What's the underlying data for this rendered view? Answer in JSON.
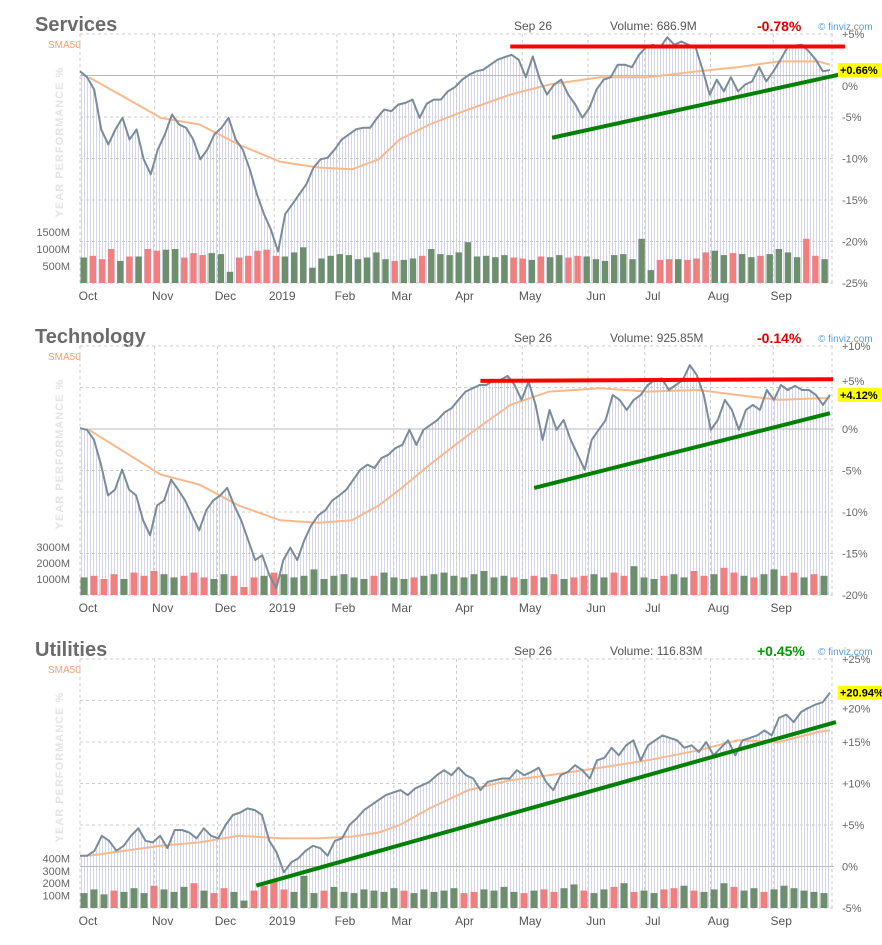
{
  "x_axis": {
    "labels": [
      "Oct",
      "Nov",
      "Dec",
      "2019",
      "Feb",
      "Mar",
      "Apr",
      "May",
      "Jun",
      "Jul",
      "Aug",
      "Sep"
    ],
    "days": [
      0,
      25,
      46,
      65,
      86,
      105,
      126,
      148,
      170,
      189,
      211,
      232
    ],
    "total_days": 251
  },
  "colors": {
    "price": "#7a8c9a",
    "sma": "#f8b98f",
    "up_volume": "#6e8f6e",
    "down_volume": "#f08080",
    "red_line": "#ff0000",
    "green_line": "#008000",
    "highlight": "#ffff00",
    "negative": "#dd0000",
    "positive": "#009900"
  },
  "chart_data": [
    {
      "type": "line",
      "title": "Services",
      "date": "Sep 26",
      "volume_label": "Volume: 686.9M",
      "change": "-0.78%",
      "change_sign": "negative",
      "watermark": "© finviz.com",
      "sma_label": "SMA50",
      "ylabel": "YEAR PERFORMANCE %",
      "last_label": "+0.66%",
      "last_value": 0.66,
      "ylim": [
        -25,
        5
      ],
      "yticks": [
        "+5%",
        "0%",
        "-5%",
        "-10%",
        "-15%",
        "-20%",
        "-25%"
      ],
      "volume_ticks": [
        {
          "label": "1500M",
          "value": 1500
        },
        {
          "label": "1000M",
          "value": 1000
        },
        {
          "label": "500M",
          "value": 500
        }
      ],
      "price": [
        0.5,
        -0.2,
        -1.7,
        -6.5,
        -8.3,
        -6.5,
        -5.1,
        -7.7,
        -6.5,
        -10.1,
        -11.9,
        -8.9,
        -7.1,
        -4.7,
        -5.9,
        -6.3,
        -7.7,
        -10.1,
        -8.9,
        -7.1,
        -6.3,
        -5.1,
        -7.7,
        -8.9,
        -11.3,
        -14.3,
        -16.7,
        -18.6,
        -21.2,
        -16.7,
        -15.5,
        -14.3,
        -13.1,
        -11.1,
        -10.1,
        -9.9,
        -8.9,
        -7.7,
        -7.1,
        -6.5,
        -6.3,
        -6.3,
        -5.1,
        -4.1,
        -4.3,
        -3.5,
        -3.3,
        -2.9,
        -5.1,
        -3.4,
        -2.9,
        -2.9,
        -1.9,
        -1.4,
        -0.5,
        0.1,
        0.5,
        0.7,
        1.3,
        1.9,
        2.2,
        2.5,
        1.9,
        -0.2,
        2.3,
        -0.5,
        -2.3,
        -1.1,
        -0.5,
        -2.3,
        -3.5,
        -5.1,
        -3.9,
        -1.7,
        -0.5,
        -0.2,
        1.3,
        1.3,
        1.0,
        2.5,
        3.4,
        3.7,
        3.4,
        4.6,
        3.7,
        4.1,
        3.7,
        3.4,
        0.7,
        -2.3,
        -0.5,
        -1.9,
        -0.2,
        -1.9,
        -1.1,
        -0.7,
        1.0,
        -0.7,
        0.5,
        1.9,
        3.4,
        3.6,
        3.7,
        2.9,
        1.9,
        0.5,
        0.66
      ],
      "sma50": [
        [
          3,
          -0.2
        ],
        [
          27,
          -5.1
        ],
        [
          40,
          -5.9
        ],
        [
          53,
          -8.3
        ],
        [
          67,
          -10.4
        ],
        [
          80,
          -11.1
        ],
        [
          91,
          -11.3
        ],
        [
          100,
          -10.1
        ],
        [
          107,
          -7.7
        ],
        [
          117,
          -5.9
        ],
        [
          130,
          -4.1
        ],
        [
          144,
          -2.3
        ],
        [
          157,
          -1.1
        ],
        [
          174,
          -0.2
        ],
        [
          190,
          -0.2
        ],
        [
          207,
          0.5
        ],
        [
          220,
          1.0
        ],
        [
          234,
          1.7
        ],
        [
          247,
          1.7
        ],
        [
          251,
          1.3
        ]
      ],
      "volume": [
        750,
        800,
        700,
        1000,
        650,
        780,
        780,
        1000,
        950,
        980,
        1000,
        750,
        880,
        820,
        880,
        850,
        330,
        750,
        800,
        950,
        980,
        800,
        780,
        900,
        1050,
        450,
        720,
        800,
        850,
        820,
        700,
        750,
        900,
        700,
        650,
        680,
        720,
        800,
        1000,
        850,
        820,
        900,
        1200,
        780,
        800,
        760,
        820,
        750,
        720,
        680,
        780,
        760,
        820,
        750,
        800,
        780,
        700,
        650,
        820,
        850,
        700,
        1300,
        380,
        680,
        700,
        700,
        680,
        720,
        900,
        950,
        820,
        880,
        850,
        760,
        800,
        850,
        1000,
        900,
        760,
        1300,
        800,
        700
      ],
      "trendlines": [
        {
          "color": "red",
          "points": [
            [
              144,
              3.5
            ],
            [
              256,
              3.5
            ]
          ]
        },
        {
          "color": "green",
          "points": [
            [
              158,
              -7.5
            ],
            [
              254,
              0.1
            ]
          ]
        }
      ]
    },
    {
      "type": "line",
      "title": "Technology",
      "date": "Sep 26",
      "volume_label": "Volume: 925.85M",
      "change": "-0.14%",
      "change_sign": "negative",
      "watermark": "© finviz.com",
      "sma_label": "SMA50",
      "ylabel": "YEAR PERFORMANCE %",
      "last_label": "+4.12%",
      "last_value": 4.12,
      "ylim": [
        -20,
        10
      ],
      "yticks": [
        "+10%",
        "+5%",
        "0%",
        "-5%",
        "-10%",
        "-15%",
        "-20%"
      ],
      "volume_ticks": [
        {
          "label": "3000M",
          "value": 3000
        },
        {
          "label": "2000M",
          "value": 2000
        },
        {
          "label": "1000M",
          "value": 1000
        }
      ],
      "price": [
        0.1,
        -0.1,
        -1.3,
        -4.3,
        -8.0,
        -7.3,
        -4.9,
        -7.3,
        -8.0,
        -11.0,
        -12.8,
        -9.2,
        -8.6,
        -6.1,
        -7.3,
        -8.6,
        -10.4,
        -12.2,
        -9.8,
        -8.6,
        -8.0,
        -7.1,
        -9.2,
        -11.0,
        -13.4,
        -15.8,
        -15.2,
        -17.6,
        -19.2,
        -15.8,
        -14.3,
        -15.8,
        -13.4,
        -11.6,
        -10.4,
        -9.8,
        -8.6,
        -8.0,
        -7.3,
        -6.1,
        -4.9,
        -4.3,
        -4.7,
        -3.5,
        -3.1,
        -2.3,
        -1.9,
        -0.1,
        -1.9,
        -0.1,
        0.5,
        1.1,
        2.0,
        2.5,
        3.5,
        4.5,
        4.9,
        5.3,
        5.3,
        5.9,
        5.9,
        6.4,
        5.3,
        3.5,
        5.7,
        2.9,
        -1.3,
        2.3,
        -0.1,
        1.1,
        -1.3,
        -3.1,
        -4.9,
        -1.3,
        -0.1,
        1.1,
        4.1,
        3.5,
        2.3,
        3.5,
        4.1,
        5.3,
        5.9,
        6.1,
        4.7,
        5.3,
        5.9,
        7.7,
        6.5,
        4.1,
        -0.1,
        1.1,
        3.5,
        2.3,
        -0.1,
        2.3,
        2.9,
        2.3,
        4.7,
        3.5,
        5.3,
        4.7,
        5.2,
        4.7,
        4.7,
        4.1,
        2.9,
        4.12
      ],
      "sma50": [
        [
          3,
          -0.1
        ],
        [
          27,
          -5.5
        ],
        [
          40,
          -6.7
        ],
        [
          53,
          -9.2
        ],
        [
          67,
          -11.0
        ],
        [
          80,
          -11.3
        ],
        [
          91,
          -11.0
        ],
        [
          100,
          -9.2
        ],
        [
          107,
          -7.3
        ],
        [
          117,
          -4.3
        ],
        [
          130,
          -0.7
        ],
        [
          144,
          2.9
        ],
        [
          157,
          4.5
        ],
        [
          174,
          4.9
        ],
        [
          190,
          4.5
        ],
        [
          207,
          4.7
        ],
        [
          220,
          4.1
        ],
        [
          234,
          3.5
        ],
        [
          247,
          3.7
        ],
        [
          251,
          3.7
        ]
      ],
      "volume": [
        1100,
        1200,
        1000,
        1300,
        1000,
        1400,
        1200,
        1500,
        1300,
        1100,
        1200,
        1400,
        1100,
        1000,
        1300,
        1200,
        500,
        1100,
        1200,
        1400,
        1300,
        1100,
        1200,
        1600,
        1000,
        1200,
        1300,
        1100,
        1000,
        1200,
        1400,
        1100,
        1000,
        1100,
        1200,
        1300,
        1400,
        1200,
        1100,
        1300,
        1500,
        1100,
        1200,
        1100,
        1000,
        1200,
        1100,
        1300,
        1000,
        1100,
        1200,
        1300,
        1100,
        1400,
        1200,
        1800,
        1100,
        1000,
        1200,
        1300,
        1100,
        1500,
        1200,
        1300,
        1700,
        1400,
        1200,
        1100,
        1300,
        1600,
        1200,
        1400,
        1100,
        1300,
        1200
      ],
      "trendlines": [
        {
          "color": "red",
          "points": [
            [
              134,
              5.8
            ],
            [
              252,
              6.0
            ]
          ]
        },
        {
          "color": "green",
          "points": [
            [
              152,
              -7.1
            ],
            [
              251,
              1.9
            ]
          ]
        }
      ]
    },
    {
      "type": "line",
      "title": "Utilities",
      "date": "Sep 26",
      "volume_label": "Volume: 116.83M",
      "change": "+0.45%",
      "change_sign": "positive",
      "watermark": "© finviz.com",
      "sma_label": "SMA50",
      "ylabel": "YEAR PERFORMANCE %",
      "last_label": "+20.94%",
      "last_value": 20.94,
      "ylim": [
        -5,
        25
      ],
      "yticks": [
        "+25%",
        "+20%",
        "+15%",
        "+10%",
        "+5%",
        "0%",
        "-5%"
      ],
      "volume_ticks": [
        {
          "label": "400M",
          "value": 400
        },
        {
          "label": "300M",
          "value": 300
        },
        {
          "label": "200M",
          "value": 200
        },
        {
          "label": "100M",
          "value": 100
        }
      ],
      "price": [
        1.3,
        1.3,
        1.9,
        3.7,
        3.1,
        1.9,
        2.5,
        3.7,
        4.6,
        3.1,
        2.9,
        3.7,
        2.2,
        4.4,
        4.4,
        4.1,
        3.4,
        4.6,
        3.7,
        3.4,
        5.0,
        6.2,
        6.5,
        7.0,
        6.8,
        6.2,
        3.1,
        1.7,
        -0.7,
        0.5,
        1.0,
        1.9,
        2.5,
        2.2,
        1.3,
        3.1,
        3.4,
        5.0,
        5.8,
        6.8,
        7.4,
        8.0,
        8.6,
        8.9,
        9.2,
        8.6,
        9.4,
        9.8,
        10.2,
        11.0,
        11.6,
        11.0,
        11.9,
        11.0,
        10.6,
        9.2,
        10.2,
        10.4,
        10.6,
        10.6,
        11.6,
        11.0,
        11.4,
        11.9,
        10.2,
        9.2,
        11.0,
        11.4,
        12.2,
        11.6,
        10.6,
        12.8,
        13.1,
        14.3,
        13.4,
        14.6,
        15.2,
        12.8,
        14.6,
        15.2,
        15.8,
        15.5,
        15.2,
        14.3,
        14.6,
        13.8,
        15.0,
        13.4,
        14.3,
        15.2,
        13.4,
        15.2,
        15.5,
        15.8,
        16.4,
        15.8,
        17.9,
        18.3,
        17.4,
        18.6,
        19.1,
        19.5,
        19.8,
        20.94
      ],
      "sma50": [
        [
          3,
          1.3
        ],
        [
          27,
          2.5
        ],
        [
          40,
          2.9
        ],
        [
          53,
          3.7
        ],
        [
          67,
          3.4
        ],
        [
          80,
          3.4
        ],
        [
          91,
          3.6
        ],
        [
          100,
          4.1
        ],
        [
          107,
          5.0
        ],
        [
          117,
          7.0
        ],
        [
          130,
          9.2
        ],
        [
          144,
          10.4
        ],
        [
          157,
          11.0
        ],
        [
          174,
          11.9
        ],
        [
          190,
          12.8
        ],
        [
          207,
          14.0
        ],
        [
          220,
          15.2
        ],
        [
          234,
          15.0
        ],
        [
          247,
          16.2
        ],
        [
          251,
          16.4
        ]
      ],
      "volume": [
        120,
        150,
        110,
        140,
        130,
        160,
        120,
        180,
        150,
        130,
        170,
        200,
        140,
        120,
        160,
        130,
        60,
        140,
        180,
        220,
        150,
        130,
        260,
        120,
        140,
        170,
        130,
        120,
        150,
        140,
        130,
        160,
        140,
        120,
        150,
        130,
        140,
        160,
        120,
        130,
        150,
        140,
        170,
        130,
        120,
        140,
        150,
        130,
        160,
        190,
        140,
        120,
        150,
        170,
        200,
        130,
        140,
        120,
        150,
        160,
        180,
        140,
        130,
        150,
        200,
        170,
        140,
        160,
        130,
        150,
        180,
        160,
        140,
        130,
        120
      ],
      "trendlines": [
        {
          "color": "green",
          "points": [
            [
              59,
              -2.3
            ],
            [
              253,
              17.4
            ]
          ]
        }
      ]
    }
  ]
}
